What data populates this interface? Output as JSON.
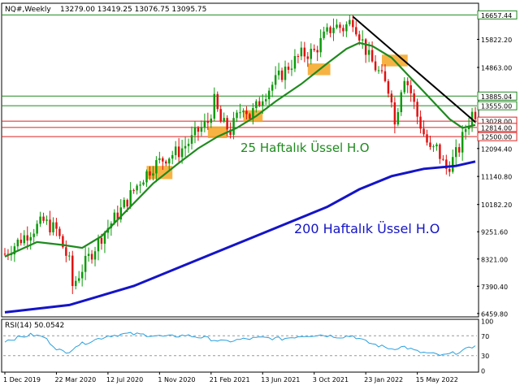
{
  "header": {
    "symbol": "NQ#,Weekly",
    "ohlc": "13279.00 13419.25 13076.75 13095.75"
  },
  "rsi_label": "RSI(14) 50.0542",
  "annotations": {
    "ema25": "25 Haftalık Üssel H.O",
    "ema200": "200 Haftalık Üssel H.O"
  },
  "colors": {
    "up": "#0a9a0a",
    "down": "#e01010",
    "ema25": "#1f8a1f",
    "ema200": "#1414c8",
    "trend": "#000000",
    "support": "#dd2222",
    "resistance": "#1f8a1f",
    "box": "#f5a623",
    "rsi": "#2aa0e0"
  },
  "chart_data": [
    {
      "type": "candlestick",
      "title": "NQ#,Weekly",
      "x_tick_labels": [
        "1 Dec 2019",
        "22 Mar 2020",
        "12 Jul 2020",
        "1 Nov 2020",
        "21 Feb 2021",
        "13 Jun 2021",
        "3 Oct 2021",
        "23 Jan 2022",
        "15 May 2022"
      ],
      "y_tick_labels": [
        "16657.44",
        "15822.20",
        "14863.00",
        "13885.04",
        "13555.00",
        "13028.00",
        "12814.00",
        "12500.00",
        "12094.40",
        "11140.80",
        "10182.20",
        "9251.60",
        "8321.00",
        "7390.40",
        "6459.80"
      ],
      "ylim": [
        6400,
        17000
      ],
      "close_path": [
        [
          0,
          8500
        ],
        [
          6,
          9100
        ],
        [
          12,
          9600
        ],
        [
          16,
          9300
        ],
        [
          20,
          8200
        ],
        [
          21,
          7400
        ],
        [
          24,
          8000
        ],
        [
          30,
          9100
        ],
        [
          36,
          10000
        ],
        [
          42,
          11000
        ],
        [
          46,
          11500
        ],
        [
          50,
          11800
        ],
        [
          54,
          12000
        ],
        [
          58,
          12400
        ],
        [
          60,
          12700
        ],
        [
          63,
          13000
        ],
        [
          65,
          13700
        ],
        [
          67,
          13000
        ],
        [
          70,
          12700
        ],
        [
          74,
          13600
        ],
        [
          76,
          13200
        ],
        [
          78,
          13500
        ],
        [
          80,
          13900
        ],
        [
          84,
          14400
        ],
        [
          88,
          14900
        ],
        [
          92,
          15300
        ],
        [
          96,
          15400
        ],
        [
          99,
          15900
        ],
        [
          102,
          16300
        ],
        [
          105,
          16200
        ],
        [
          108,
          16500
        ],
        [
          110,
          16000
        ],
        [
          113,
          15200
        ],
        [
          116,
          14700
        ],
        [
          118,
          14300
        ],
        [
          120,
          13900
        ],
        [
          121,
          12900
        ],
        [
          123,
          14200
        ],
        [
          124,
          14600
        ],
        [
          126,
          14000
        ],
        [
          128,
          13200
        ],
        [
          130,
          12600
        ],
        [
          132,
          12000
        ],
        [
          134,
          12100
        ],
        [
          136,
          11600
        ],
        [
          137,
          11400
        ],
        [
          139,
          11700
        ],
        [
          141,
          12100
        ],
        [
          143,
          12800
        ],
        [
          145,
          13300
        ],
        [
          146,
          13096
        ]
      ],
      "ema25": [
        [
          0,
          8400
        ],
        [
          10,
          8900
        ],
        [
          18,
          8800
        ],
        [
          24,
          8700
        ],
        [
          30,
          9100
        ],
        [
          38,
          10000
        ],
        [
          46,
          10900
        ],
        [
          54,
          11600
        ],
        [
          60,
          12100
        ],
        [
          66,
          12500
        ],
        [
          72,
          12800
        ],
        [
          78,
          13200
        ],
        [
          84,
          13700
        ],
        [
          92,
          14300
        ],
        [
          100,
          15000
        ],
        [
          106,
          15500
        ],
        [
          110,
          15700
        ],
        [
          114,
          15600
        ],
        [
          120,
          15200
        ],
        [
          126,
          14500
        ],
        [
          132,
          13800
        ],
        [
          138,
          13100
        ],
        [
          142,
          12800
        ],
        [
          146,
          12900
        ]
      ],
      "ema200": [
        [
          0,
          6500
        ],
        [
          20,
          6750
        ],
        [
          40,
          7400
        ],
        [
          60,
          8300
        ],
        [
          80,
          9200
        ],
        [
          100,
          10100
        ],
        [
          110,
          10700
        ],
        [
          120,
          11150
        ],
        [
          130,
          11400
        ],
        [
          140,
          11500
        ],
        [
          146,
          11650
        ]
      ],
      "trendline": [
        [
          108,
          16600
        ],
        [
          146,
          13000
        ]
      ],
      "horizontal_levels": [
        {
          "value": 16657.44,
          "label": "16657.44",
          "kind": "resistance"
        },
        {
          "value": 13885.04,
          "label": "13885.04",
          "kind": "resistance"
        },
        {
          "value": 13555.0,
          "label": "13555.00",
          "kind": "resistance"
        },
        {
          "value": 13028.0,
          "label": "13028.00",
          "kind": "support"
        },
        {
          "value": 12814.0,
          "label": "12814.00",
          "kind": "support"
        },
        {
          "value": 12500.0,
          "label": "12500.00",
          "kind": "support"
        }
      ],
      "highlight_boxes": [
        {
          "x": [
            44,
            52
          ],
          "y": [
            11050,
            11500
          ]
        },
        {
          "x": [
            63,
            69
          ],
          "y": [
            12450,
            12850
          ]
        },
        {
          "x": [
            74,
            80
          ],
          "y": [
            13000,
            13400
          ]
        },
        {
          "x": [
            94,
            101
          ],
          "y": [
            14600,
            15000
          ]
        },
        {
          "x": [
            117,
            125
          ],
          "y": [
            14900,
            15300
          ]
        }
      ]
    },
    {
      "type": "line",
      "title": "RSI(14) 50.0542",
      "y_tick_labels": [
        "100",
        "70",
        "30",
        "0"
      ],
      "ylim": [
        0,
        100
      ],
      "levels": [
        70,
        30
      ],
      "values": [
        [
          0,
          60
        ],
        [
          4,
          66
        ],
        [
          8,
          72
        ],
        [
          12,
          68
        ],
        [
          16,
          45
        ],
        [
          19,
          34
        ],
        [
          22,
          50
        ],
        [
          26,
          58
        ],
        [
          32,
          70
        ],
        [
          38,
          74
        ],
        [
          44,
          72
        ],
        [
          50,
          68
        ],
        [
          56,
          71
        ],
        [
          62,
          66
        ],
        [
          68,
          58
        ],
        [
          74,
          63
        ],
        [
          80,
          66
        ],
        [
          86,
          64
        ],
        [
          92,
          70
        ],
        [
          98,
          72
        ],
        [
          104,
          68
        ],
        [
          108,
          70
        ],
        [
          112,
          58
        ],
        [
          116,
          50
        ],
        [
          120,
          44
        ],
        [
          124,
          48
        ],
        [
          128,
          38
        ],
        [
          132,
          34
        ],
        [
          136,
          30
        ],
        [
          140,
          36
        ],
        [
          144,
          44
        ],
        [
          146,
          50
        ]
      ]
    }
  ]
}
